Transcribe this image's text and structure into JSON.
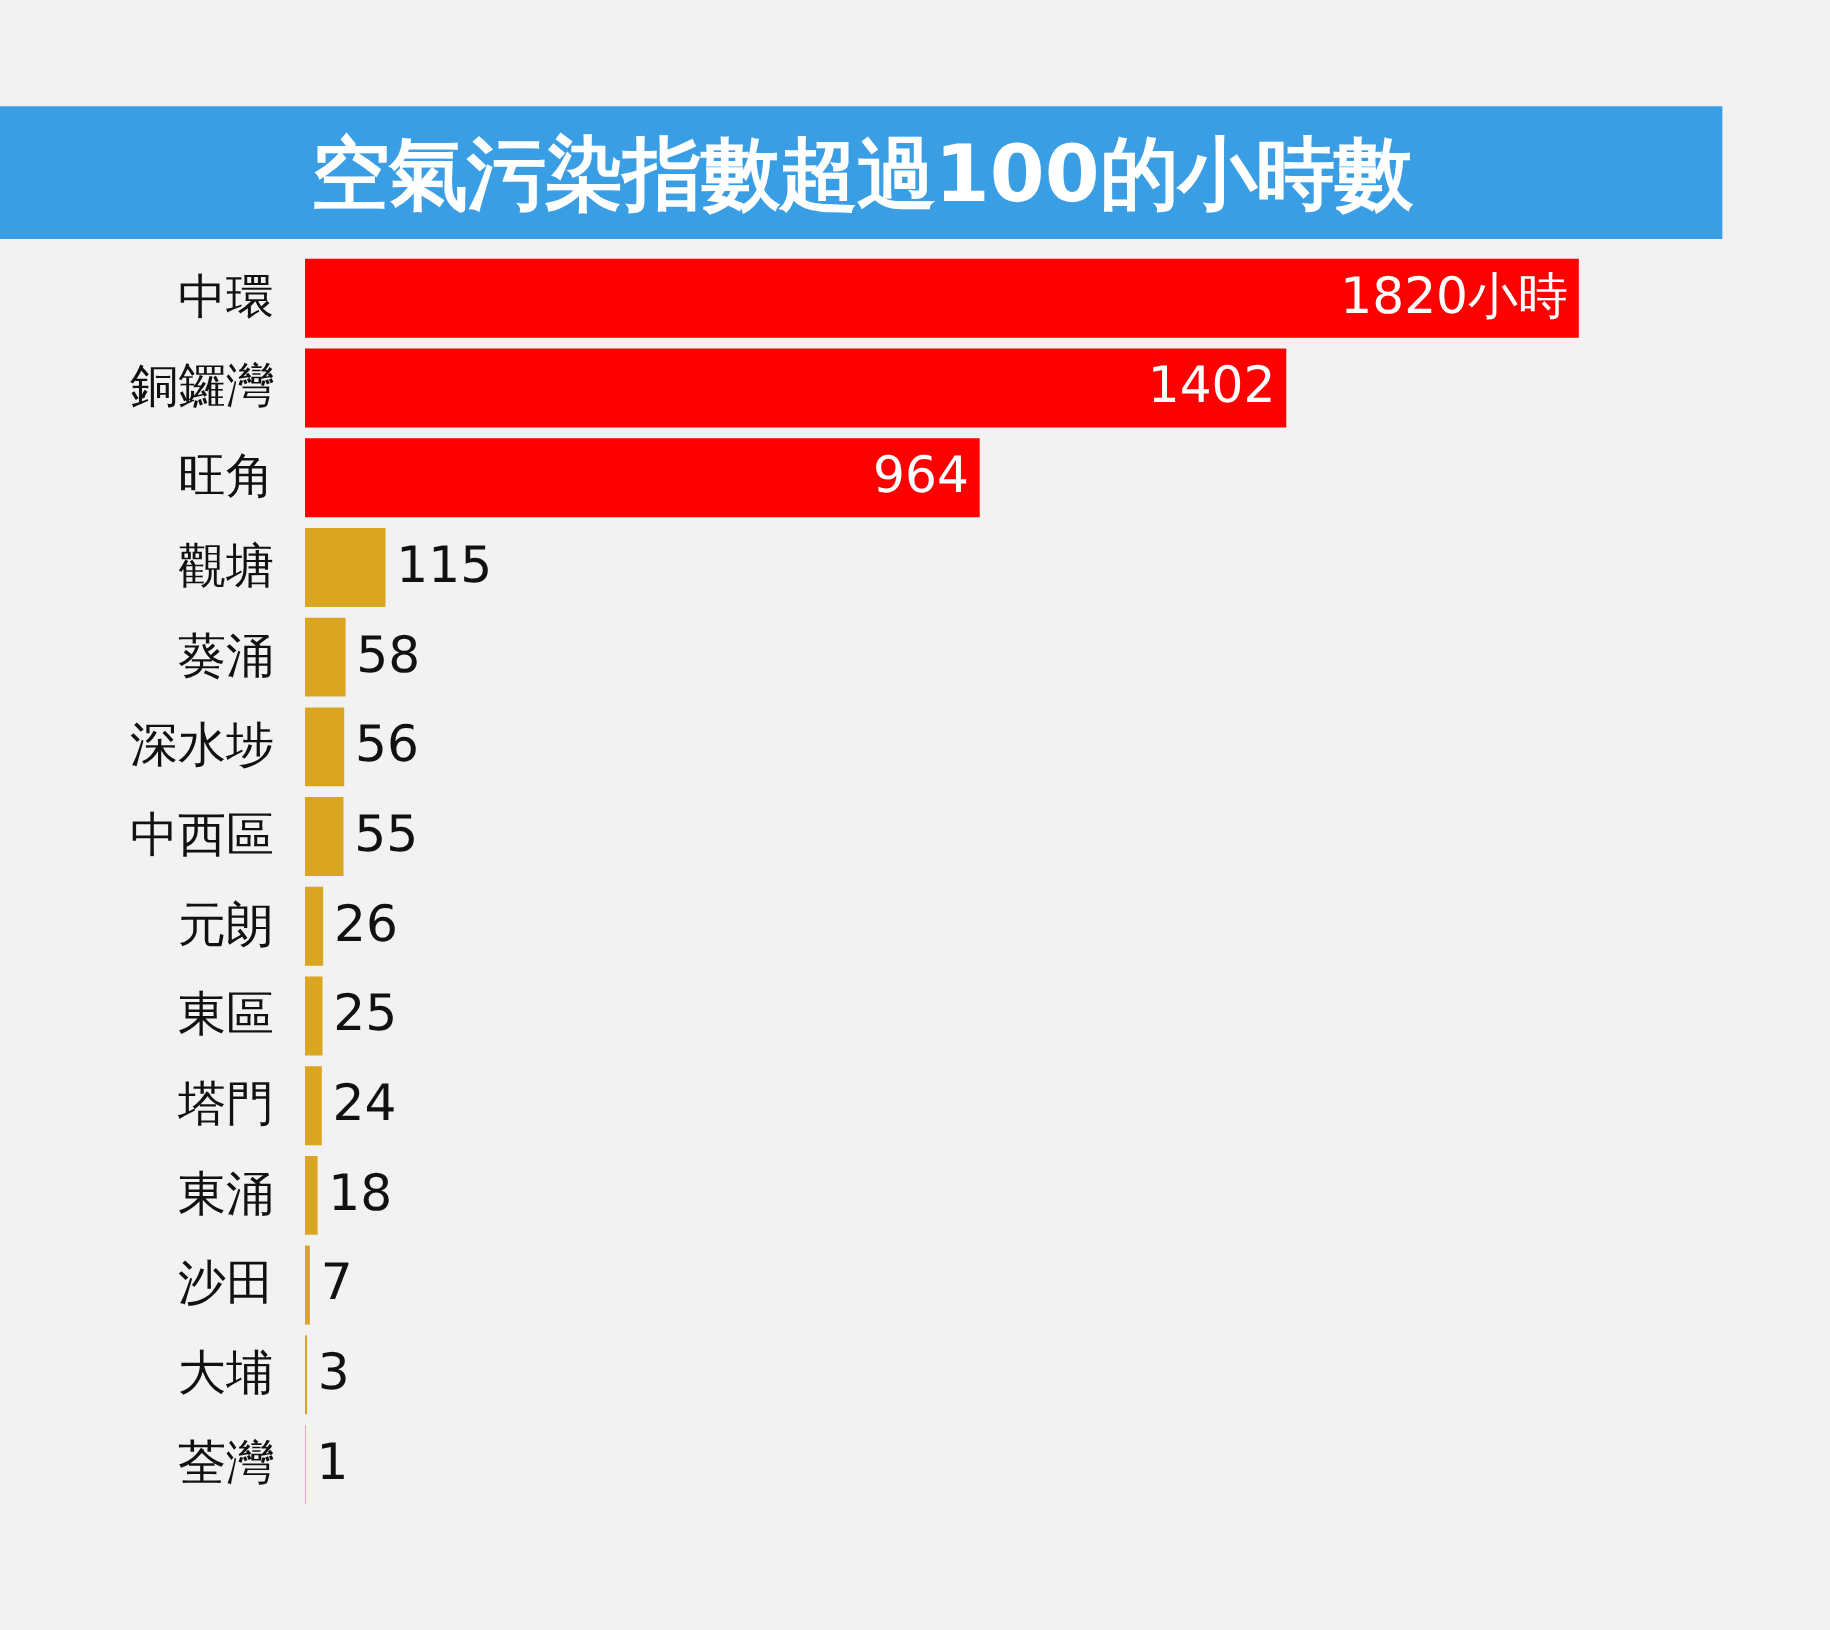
{
  "chart_data": {
    "type": "bar",
    "orientation": "horizontal",
    "title": "空氣污染指數超過100的小時數",
    "categories": [
      "中環",
      "銅鑼灣",
      "旺角",
      "觀塘",
      "葵涌",
      "深水埗",
      "中西區",
      "元朗",
      "東區",
      "塔門",
      "東涌",
      "沙田",
      "大埔",
      "荃灣"
    ],
    "values": [
      1820,
      1402,
      964,
      115,
      58,
      56,
      55,
      26,
      25,
      24,
      18,
      7,
      3,
      1
    ],
    "colors": [
      "#ff0000",
      "#ff0000",
      "#ff0000",
      "#daa520",
      "#daa520",
      "#daa520",
      "#daa520",
      "#daa520",
      "#daa520",
      "#daa520",
      "#daa520",
      "#daa520",
      "#daa520",
      "#daa520"
    ],
    "value_labels": [
      "1820小時",
      "1402",
      "964",
      "115",
      "58",
      "56",
      "55",
      "26",
      "25",
      "24",
      "18",
      "7",
      "3",
      "1"
    ]
  }
}
